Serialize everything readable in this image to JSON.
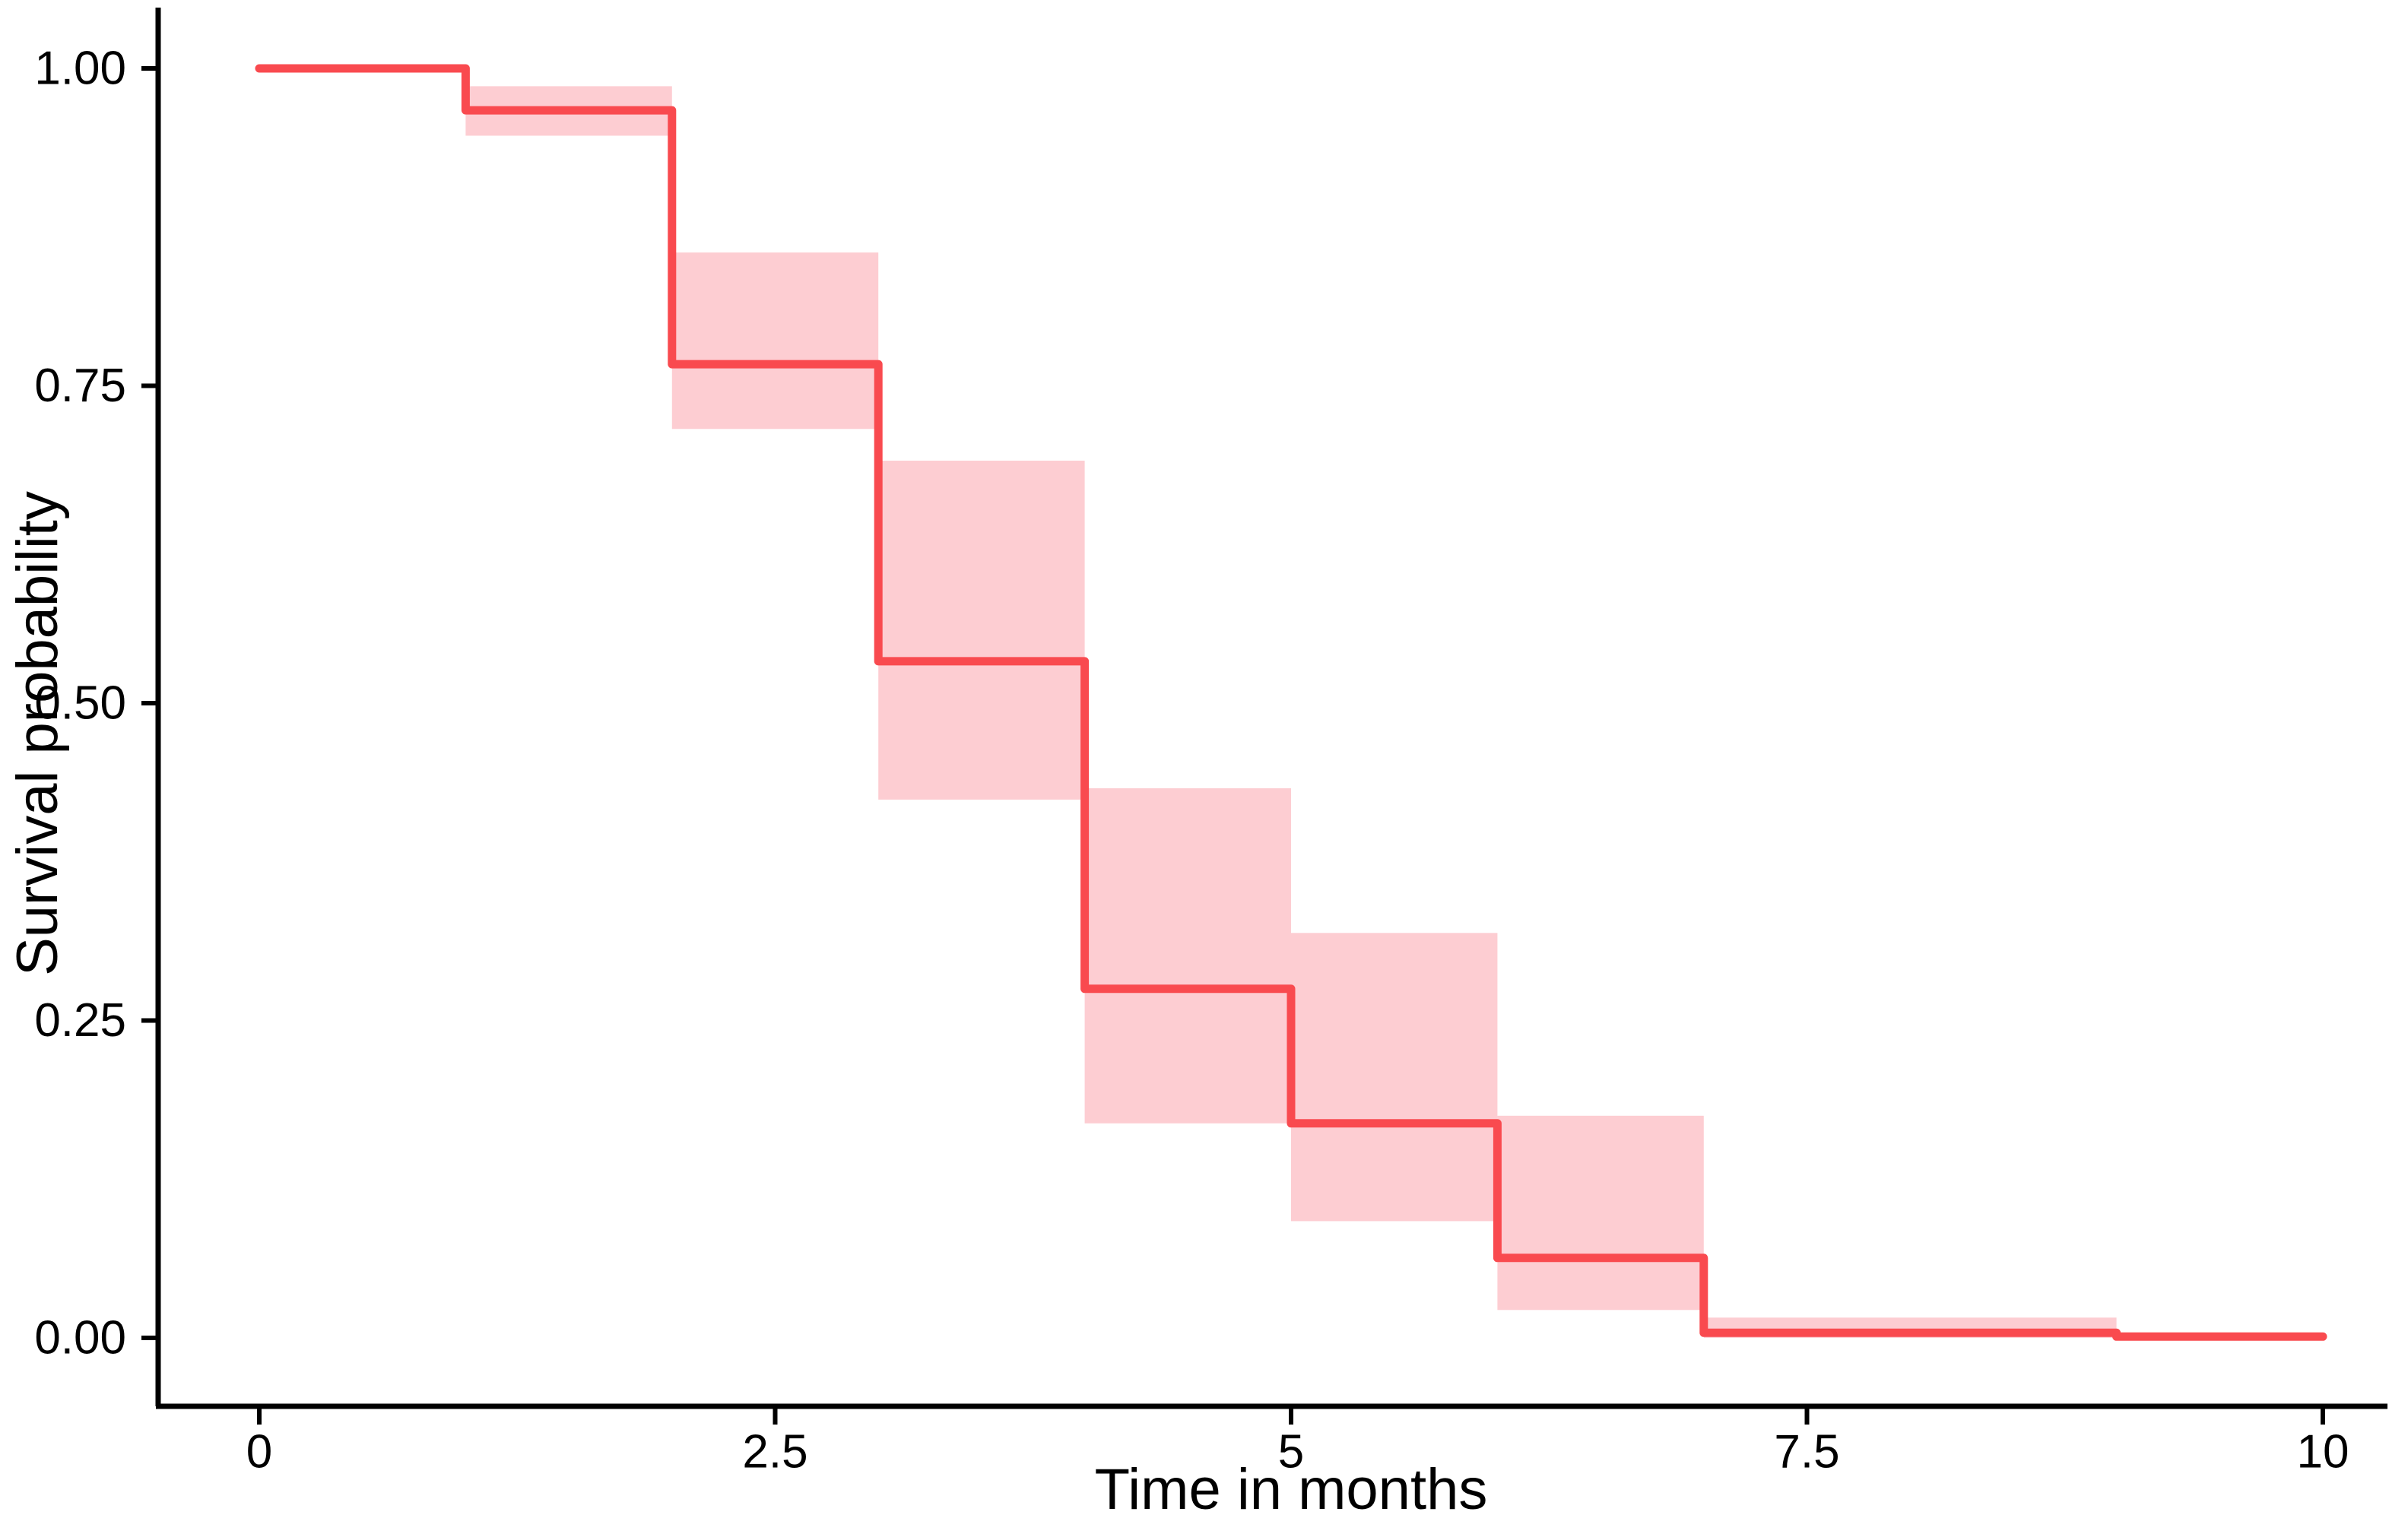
{
  "chart_data": {
    "type": "line",
    "subtype": "kaplan-meier-step-curve-with-confidence-ribbon",
    "title": "",
    "xlabel": "Time in months",
    "ylabel": "Survival probability",
    "xlim": [
      0,
      10
    ],
    "ylim": [
      0,
      1
    ],
    "grid": false,
    "legend": "none",
    "x_ticks": [
      {
        "value": 0,
        "label": "0"
      },
      {
        "value": 2.5,
        "label": "2.5"
      },
      {
        "value": 5,
        "label": "5"
      },
      {
        "value": 7.5,
        "label": "7.5"
      },
      {
        "value": 10,
        "label": "10"
      }
    ],
    "y_ticks": [
      {
        "value": 0.0,
        "label": "0.00"
      },
      {
        "value": 0.25,
        "label": "0.25"
      },
      {
        "value": 0.5,
        "label": "0.50"
      },
      {
        "value": 0.75,
        "label": "0.75"
      },
      {
        "value": 1.0,
        "label": "1.00"
      }
    ],
    "series": [
      {
        "line_color": "#F94A4F",
        "ribbon_color": "#FDCDD2",
        "steps": [
          {
            "t_start": 0,
            "t_end": 1,
            "survival": 1.0,
            "ci_lower": null,
            "ci_upper": null
          },
          {
            "t_start": 1,
            "t_end": 2,
            "survival": 0.967,
            "ci_lower": 0.947,
            "ci_upper": 0.986
          },
          {
            "t_start": 2,
            "t_end": 3,
            "survival": 0.767,
            "ci_lower": 0.716,
            "ci_upper": 0.855
          },
          {
            "t_start": 3,
            "t_end": 4,
            "survival": 0.533,
            "ci_lower": 0.424,
            "ci_upper": 0.691
          },
          {
            "t_start": 4,
            "t_end": 5,
            "survival": 0.275,
            "ci_lower": 0.169,
            "ci_upper": 0.433
          },
          {
            "t_start": 5,
            "t_end": 6,
            "survival": 0.169,
            "ci_lower": 0.092,
            "ci_upper": 0.319
          },
          {
            "t_start": 6,
            "t_end": 7,
            "survival": 0.063,
            "ci_lower": 0.022,
            "ci_upper": 0.175
          },
          {
            "t_start": 7,
            "t_end": 9,
            "survival": 0.004,
            "ci_lower": 0.0,
            "ci_upper": 0.016
          },
          {
            "t_start": 9,
            "t_end": 10,
            "survival": 0.001,
            "ci_lower": null,
            "ci_upper": null
          }
        ]
      }
    ],
    "axis_color": "#000000",
    "tick_label_color": "#000000",
    "background_color": "#ffffff"
  }
}
